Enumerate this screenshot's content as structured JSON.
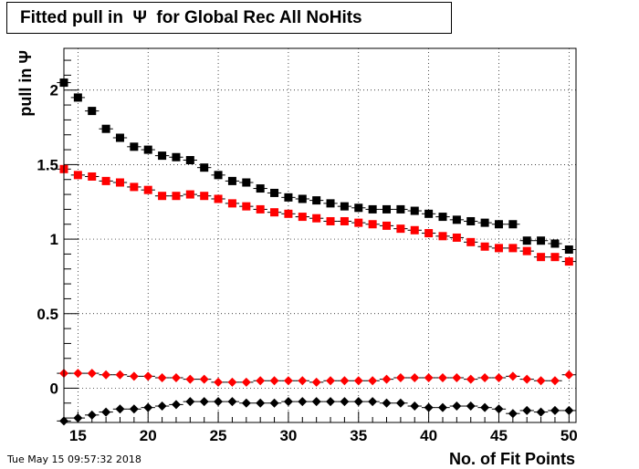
{
  "title": "Fitted pull in  Ψ  for Global Rec All NoHits",
  "timestamp": "Tue May 15 09:57:32 2018",
  "chart_data": {
    "type": "scatter",
    "title": "Fitted pull in  Ψ  for Global Rec All NoHits",
    "xlabel": "No. of Fit Points",
    "ylabel": "pull in  Ψ",
    "xlim": [
      14,
      50.5
    ],
    "ylim": [
      -0.23,
      2.28
    ],
    "grid": true,
    "x_ticks": [
      15,
      20,
      25,
      30,
      35,
      40,
      45,
      50
    ],
    "y_ticks": [
      0,
      0.5,
      1,
      1.5,
      2
    ],
    "x_tick_labels": [
      "15",
      "20",
      "25",
      "30",
      "35",
      "40",
      "45",
      "50"
    ],
    "y_tick_labels": [
      "0",
      "0.5",
      "1",
      "1.5",
      "2"
    ],
    "x": [
      14,
      15,
      16,
      17,
      18,
      19,
      20,
      21,
      22,
      23,
      24,
      25,
      26,
      27,
      28,
      29,
      30,
      31,
      32,
      33,
      34,
      35,
      36,
      37,
      38,
      39,
      40,
      41,
      42,
      43,
      44,
      45,
      46,
      47,
      48,
      49,
      50
    ],
    "series": [
      {
        "marker": "square",
        "color": "#000000",
        "values": [
          2.05,
          1.95,
          1.86,
          1.74,
          1.68,
          1.62,
          1.6,
          1.56,
          1.55,
          1.53,
          1.48,
          1.43,
          1.39,
          1.38,
          1.34,
          1.31,
          1.28,
          1.27,
          1.26,
          1.24,
          1.22,
          1.21,
          1.2,
          1.2,
          1.2,
          1.19,
          1.17,
          1.15,
          1.13,
          1.12,
          1.11,
          1.1,
          1.1,
          0.99,
          0.99,
          0.97,
          0.93
        ]
      },
      {
        "marker": "square",
        "color": "#ff0000",
        "values": [
          1.47,
          1.43,
          1.42,
          1.39,
          1.38,
          1.35,
          1.33,
          1.29,
          1.29,
          1.3,
          1.29,
          1.27,
          1.24,
          1.22,
          1.2,
          1.18,
          1.17,
          1.15,
          1.14,
          1.12,
          1.12,
          1.11,
          1.1,
          1.09,
          1.07,
          1.06,
          1.04,
          1.02,
          1.01,
          0.98,
          0.95,
          0.94,
          0.94,
          0.92,
          0.88,
          0.88,
          0.85
        ]
      },
      {
        "marker": "diamond",
        "color": "#ff0000",
        "values": [
          0.1,
          0.1,
          0.1,
          0.09,
          0.09,
          0.08,
          0.08,
          0.07,
          0.07,
          0.06,
          0.06,
          0.04,
          0.04,
          0.04,
          0.05,
          0.05,
          0.05,
          0.05,
          0.04,
          0.05,
          0.05,
          0.05,
          0.05,
          0.06,
          0.07,
          0.07,
          0.07,
          0.07,
          0.07,
          0.06,
          0.07,
          0.07,
          0.08,
          0.06,
          0.05,
          0.05,
          0.09
        ]
      },
      {
        "marker": "diamond",
        "color": "#000000",
        "values": [
          -0.22,
          -0.2,
          -0.18,
          -0.16,
          -0.14,
          -0.14,
          -0.13,
          -0.12,
          -0.11,
          -0.09,
          -0.09,
          -0.09,
          -0.09,
          -0.1,
          -0.1,
          -0.1,
          -0.09,
          -0.09,
          -0.09,
          -0.09,
          -0.09,
          -0.09,
          -0.09,
          -0.1,
          -0.1,
          -0.12,
          -0.13,
          -0.13,
          -0.12,
          -0.12,
          -0.13,
          -0.14,
          -0.17,
          -0.15,
          -0.16,
          -0.15,
          -0.15
        ]
      }
    ]
  }
}
